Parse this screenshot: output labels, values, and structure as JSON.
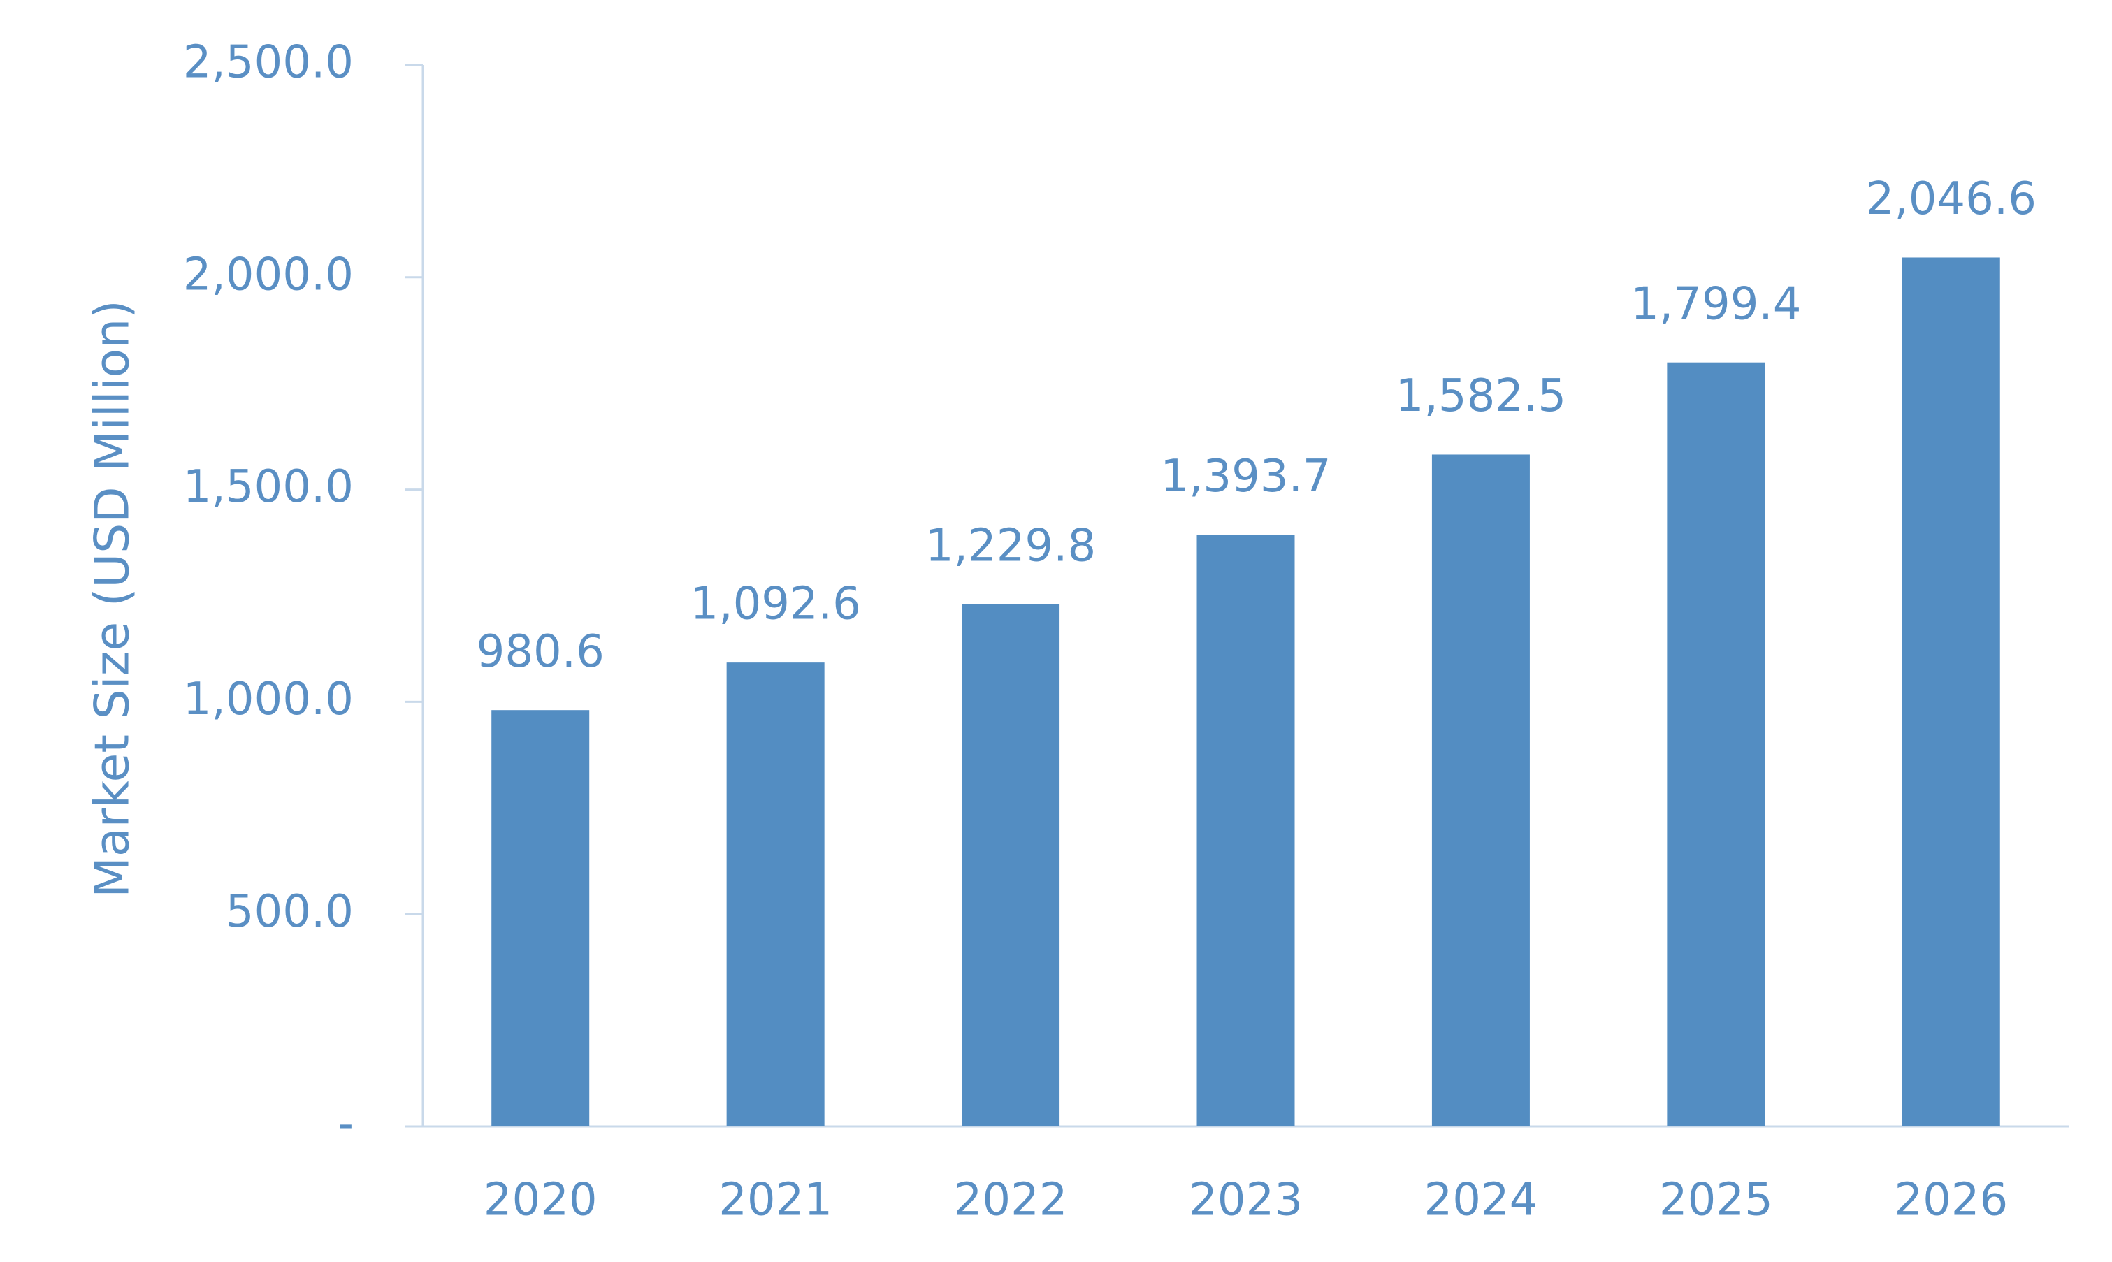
{
  "chart_data": {
    "type": "bar",
    "y_label": "Market Size (USD Million)",
    "categories": [
      "2020",
      "2021",
      "2022",
      "2023",
      "2024",
      "2025",
      "2026"
    ],
    "values": [
      980.6,
      1092.6,
      1229.8,
      1393.7,
      1582.5,
      1799.4,
      2046.6
    ],
    "value_labels": [
      "980.6",
      "1,092.6",
      "1,229.8",
      "1,393.7",
      "1,582.5",
      "1,799.4",
      "2,046.6"
    ],
    "color": "#538dc2",
    "ylim": [
      0,
      2500
    ],
    "yticks": [
      {
        "value": 0,
        "label": "-"
      },
      {
        "value": 500,
        "label": "500.0"
      },
      {
        "value": 1000,
        "label": "1,000.0"
      },
      {
        "value": 1500,
        "label": "1,500.0"
      },
      {
        "value": 2000,
        "label": "2,000.0"
      },
      {
        "value": 2500,
        "label": "2,500.0"
      }
    ],
    "grid": false
  }
}
